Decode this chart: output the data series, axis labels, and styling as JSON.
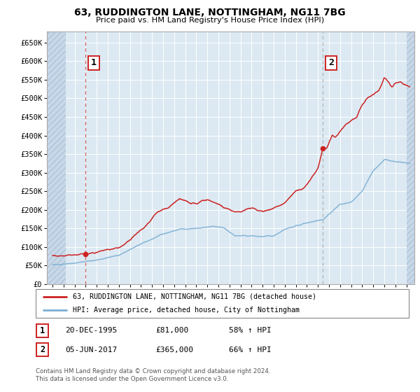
{
  "title": "63, RUDDINGTON LANE, NOTTINGHAM, NG11 7BG",
  "subtitle": "Price paid vs. HM Land Registry's House Price Index (HPI)",
  "ylim": [
    0,
    680000
  ],
  "yticks": [
    0,
    50000,
    100000,
    150000,
    200000,
    250000,
    300000,
    350000,
    400000,
    450000,
    500000,
    550000,
    600000,
    650000
  ],
  "ytick_labels": [
    "£0",
    "£50K",
    "£100K",
    "£150K",
    "£200K",
    "£250K",
    "£300K",
    "£350K",
    "£400K",
    "£450K",
    "£500K",
    "£550K",
    "£600K",
    "£650K"
  ],
  "sale1_date": 1995.97,
  "sale1_price": 81000,
  "sale2_date": 2017.43,
  "sale2_price": 365000,
  "hpi_color": "#7bafd4",
  "price_color": "#cc2222",
  "vline1_color": "#cc3333",
  "vline2_color": "#aaaaaa",
  "plot_bg_color": "#dce9f2",
  "hatch_color": "#c8d8e8",
  "grid_color": "#c8d8e8",
  "legend_line1": "63, RUDDINGTON LANE, NOTTINGHAM, NG11 7BG (detached house)",
  "legend_line2": "HPI: Average price, detached house, City of Nottingham",
  "table_row1": [
    "1",
    "20-DEC-1995",
    "£81,000",
    "58% ↑ HPI"
  ],
  "table_row2": [
    "2",
    "05-JUN-2017",
    "£365,000",
    "66% ↑ HPI"
  ],
  "footnote": "Contains HM Land Registry data © Crown copyright and database right 2024.\nThis data is licensed under the Open Government Licence v3.0.",
  "xlim_start": 1992.5,
  "xlim_end": 2025.7,
  "hatch_end": 1994.2,
  "hatch_start_right": 2025.0,
  "box1_label": "1",
  "box2_label": "2"
}
